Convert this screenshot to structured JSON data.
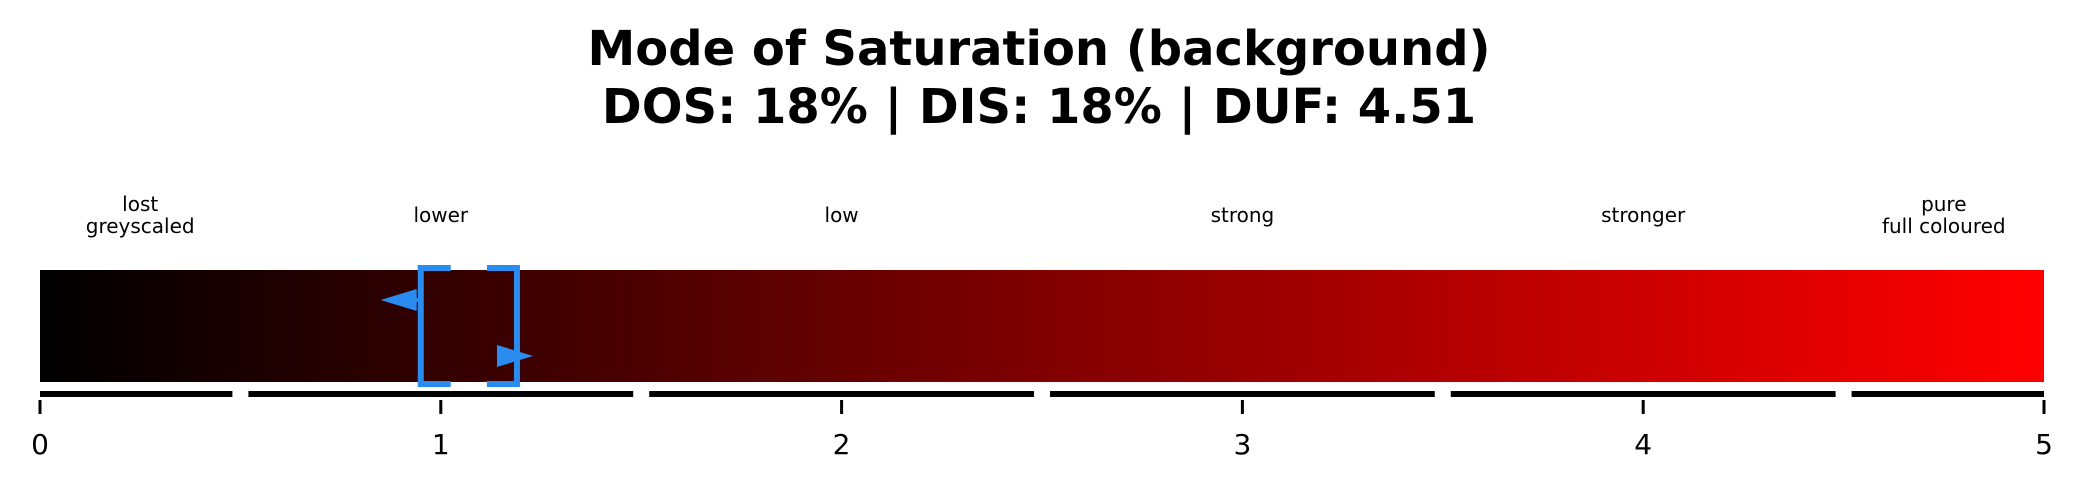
{
  "chart_data": {
    "type": "bar",
    "title_line1": "Mode of Saturation (background)",
    "title_line2": "DOS: 18% | DIS: 18% | DUF: 4.51",
    "xlim": [
      0,
      5
    ],
    "ticks": [
      "0",
      "1",
      "2",
      "3",
      "4",
      "5"
    ],
    "tick_values": [
      0,
      1,
      2,
      3,
      4,
      5
    ],
    "gradient": {
      "start_color": "#000000",
      "end_color": "#ff0000"
    },
    "regions": [
      {
        "lines": [
          "lost",
          "greyscaled"
        ],
        "start": 0.0,
        "end": 0.5
      },
      {
        "lines": [
          "lower"
        ],
        "start": 0.5,
        "end": 1.5
      },
      {
        "lines": [
          "low"
        ],
        "start": 1.5,
        "end": 2.5
      },
      {
        "lines": [
          "strong"
        ],
        "start": 2.5,
        "end": 3.5
      },
      {
        "lines": [
          "stronger"
        ],
        "start": 3.5,
        "end": 4.5
      },
      {
        "lines": [
          "pure",
          "full coloured"
        ],
        "start": 4.5,
        "end": 5.0
      }
    ],
    "marker": {
      "range_start": 0.95,
      "range_end": 1.19,
      "left_arrow_at": 0.85,
      "right_arrow_at": 1.23,
      "color": "#2b8cf0"
    },
    "grid": false,
    "legend": "none"
  }
}
